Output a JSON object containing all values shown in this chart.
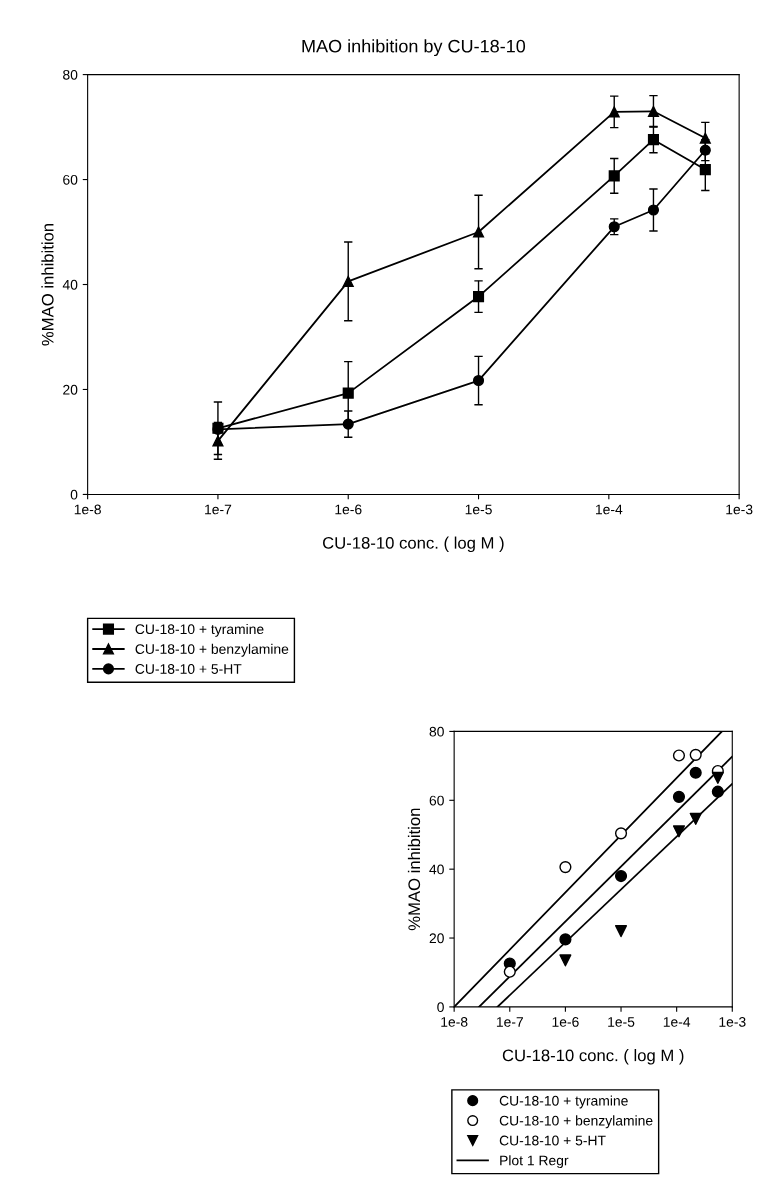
{
  "chart_data": [
    {
      "type": "line",
      "title": "MAO inhibition by CU-18-10",
      "xlabel": "CU-18-10 conc. ( log M )",
      "ylabel": "%MAO inhibition",
      "log": "x",
      "xlim": [
        1e-08,
        0.001
      ],
      "xticks": [
        {
          "value": 1e-08,
          "label": "1e-8"
        },
        {
          "value": 1e-07,
          "label": "1e-7"
        },
        {
          "value": 1e-06,
          "label": "1e-6"
        },
        {
          "value": 1e-05,
          "label": "1e-5"
        },
        {
          "value": 0.0001,
          "label": "1e-4"
        },
        {
          "value": 0.001,
          "label": "1e-3"
        }
      ],
      "ylim": [
        0,
        80
      ],
      "yticks": [
        0,
        20,
        40,
        60,
        80
      ],
      "grid": false,
      "legend": "bottom left",
      "line_style": "solid",
      "x": [
        1e-07,
        1e-06,
        1e-05,
        0.00011,
        0.00022,
        0.00055
      ],
      "series": [
        {
          "name": "CU-18-10 + tyramine",
          "color": "#000000",
          "marker": "square",
          "values": [
            12.6,
            19.3,
            37.7,
            60.7,
            67.6,
            61.9
          ],
          "errors": [
            5,
            6,
            3,
            3.3,
            2.5,
            4
          ]
        },
        {
          "name": "CU-18-10 + benzylamine",
          "color": "#000000",
          "marker": "triangle",
          "values": [
            10.2,
            40.6,
            50,
            72.9,
            73,
            67.9
          ],
          "errors": [
            3.5,
            7.5,
            7,
            3,
            3,
            3
          ]
        },
        {
          "name": "CU-18-10 + 5-HT",
          "color": "#000000",
          "marker": "circle",
          "values": [
            12.4,
            13.4,
            21.7,
            51,
            54.2,
            65.6
          ],
          "errors": [
            null,
            2.5,
            4.6,
            1.5,
            4,
            2
          ]
        }
      ]
    },
    {
      "type": "scatter",
      "xlabel": "CU-18-10 conc. ( log M )",
      "ylabel": "%MAO inhibition",
      "log": "x",
      "xlim": [
        1e-08,
        0.001
      ],
      "xticks": [
        {
          "value": 1e-08,
          "label": "1e-8"
        },
        {
          "value": 1e-07,
          "label": "1e-7"
        },
        {
          "value": 1e-06,
          "label": "1e-6"
        },
        {
          "value": 1e-05,
          "label": "1e-5"
        },
        {
          "value": 0.0001,
          "label": "1e-4"
        },
        {
          "value": 0.001,
          "label": "1e-3"
        }
      ],
      "ylim": [
        0,
        80
      ],
      "yticks": [
        0,
        20,
        40,
        60,
        80
      ],
      "grid": false,
      "legend": "bottom",
      "x": [
        1e-07,
        1e-06,
        1e-05,
        0.00011,
        0.00022,
        0.00055
      ],
      "series": [
        {
          "name": "CU-18-10 + tyramine",
          "color": "#000000",
          "marker": "circle",
          "values": [
            12.6,
            19.6,
            38,
            61,
            68,
            62.5
          ]
        },
        {
          "name": "CU-18-10 + benzylamine",
          "color": "#000000",
          "marker": "circle_open",
          "values": [
            10.2,
            40.6,
            50.4,
            73,
            73.2,
            68.5
          ]
        },
        {
          "name": "CU-18-10 + 5-HT",
          "color": "#000000",
          "marker": "triangle_down",
          "values": [
            null,
            13.5,
            22,
            51,
            54.6,
            66.5
          ]
        },
        {
          "type": "line",
          "name": "Plot 1 Regr",
          "color": "#000000",
          "marker": "none",
          "x": [
            1e-08,
            0.00065
          ],
          "values": [
            0,
            80
          ]
        },
        {
          "type": "line",
          "color": "#000000",
          "marker": "none",
          "x": [
            2.8e-08,
            0.001
          ],
          "values": [
            0,
            72.7
          ]
        },
        {
          "type": "line",
          "color": "#000000",
          "marker": "none",
          "x": [
            6e-08,
            0.001
          ],
          "values": [
            0,
            64.8
          ]
        }
      ]
    }
  ]
}
